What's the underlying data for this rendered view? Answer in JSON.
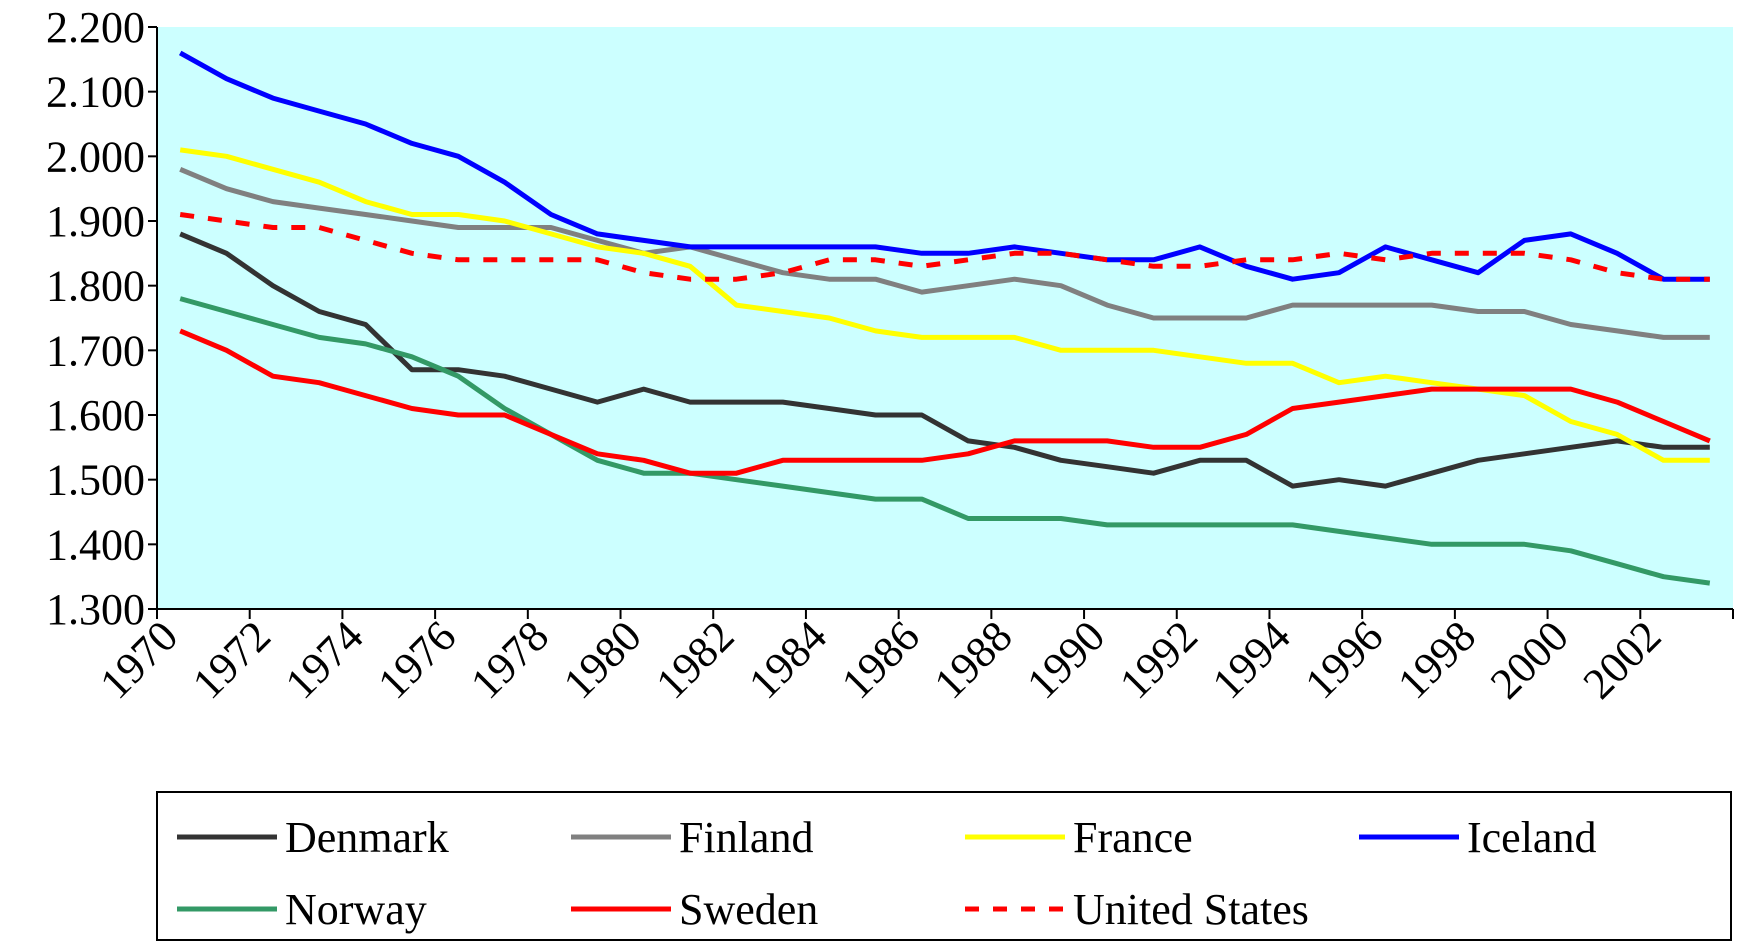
{
  "chart_data": {
    "type": "line",
    "categories": [
      "1970",
      null,
      "1972",
      null,
      "1974",
      null,
      "1976",
      null,
      "1978",
      null,
      "1980",
      null,
      "1982",
      null,
      "1984",
      null,
      "1986",
      null,
      "1988",
      null,
      "1990",
      null,
      "1992",
      null,
      "1994",
      null,
      "1996",
      null,
      "1998",
      null,
      "2000",
      null,
      "2002",
      null
    ],
    "ylim": [
      1.3,
      2.2
    ],
    "yticks": [
      {
        "value": 1.3,
        "label": "1.300"
      },
      {
        "value": 1.4,
        "label": "1.400"
      },
      {
        "value": 1.5,
        "label": "1.500"
      },
      {
        "value": 1.6,
        "label": "1.600"
      },
      {
        "value": 1.7,
        "label": "1.700"
      },
      {
        "value": 1.8,
        "label": "1.800"
      },
      {
        "value": 1.9,
        "label": "1.900"
      },
      {
        "value": 2.0,
        "label": "2.000"
      },
      {
        "value": 2.1,
        "label": "2.100"
      },
      {
        "value": 2.2,
        "label": "2.200"
      }
    ],
    "background": "#ccffff",
    "grid": false,
    "legend": "bottom",
    "series": [
      {
        "name": "Denmark",
        "color": "#333333",
        "values": [
          1.88,
          1.85,
          1.8,
          1.76,
          1.74,
          1.67,
          1.67,
          1.66,
          1.64,
          1.62,
          1.64,
          1.62,
          1.62,
          1.62,
          1.61,
          1.6,
          1.6,
          1.56,
          1.55,
          1.53,
          1.52,
          1.51,
          1.53,
          1.53,
          1.49,
          1.5,
          1.49,
          1.51,
          1.53,
          1.54,
          1.55,
          1.56,
          1.55,
          1.55
        ]
      },
      {
        "name": "Finland",
        "color": "#808080",
        "values": [
          1.98,
          1.95,
          1.93,
          1.92,
          1.91,
          1.9,
          1.89,
          1.89,
          1.89,
          1.87,
          1.85,
          1.86,
          1.84,
          1.82,
          1.81,
          1.81,
          1.79,
          1.8,
          1.81,
          1.8,
          1.77,
          1.75,
          1.75,
          1.75,
          1.77,
          1.77,
          1.77,
          1.77,
          1.76,
          1.76,
          1.74,
          1.73,
          1.72,
          1.72
        ]
      },
      {
        "name": "France",
        "color": "#ffff00",
        "values": [
          2.01,
          2.0,
          1.98,
          1.96,
          1.93,
          1.91,
          1.91,
          1.9,
          1.88,
          1.86,
          1.85,
          1.83,
          1.77,
          1.76,
          1.75,
          1.73,
          1.72,
          1.72,
          1.72,
          1.7,
          1.7,
          1.7,
          1.69,
          1.68,
          1.68,
          1.65,
          1.66,
          1.65,
          1.64,
          1.63,
          1.59,
          1.57,
          1.53,
          1.53
        ]
      },
      {
        "name": "Iceland",
        "color": "#0000ff",
        "values": [
          2.16,
          2.12,
          2.09,
          2.07,
          2.05,
          2.02,
          2.0,
          1.96,
          1.91,
          1.88,
          1.87,
          1.86,
          1.86,
          1.86,
          1.86,
          1.86,
          1.85,
          1.85,
          1.86,
          1.85,
          1.84,
          1.84,
          1.86,
          1.83,
          1.81,
          1.82,
          1.86,
          1.84,
          1.82,
          1.87,
          1.88,
          1.85,
          1.81,
          1.81
        ]
      },
      {
        "name": "Norway",
        "color": "#339966",
        "values": [
          1.78,
          1.76,
          1.74,
          1.72,
          1.71,
          1.69,
          1.66,
          1.61,
          1.57,
          1.53,
          1.51,
          1.51,
          1.5,
          1.49,
          1.48,
          1.47,
          1.47,
          1.44,
          1.44,
          1.44,
          1.43,
          1.43,
          1.43,
          1.43,
          1.43,
          1.42,
          1.41,
          1.4,
          1.4,
          1.4,
          1.39,
          1.37,
          1.35,
          1.34
        ]
      },
      {
        "name": "Sweden",
        "color": "#ff0000",
        "values": [
          1.73,
          1.7,
          1.66,
          1.65,
          1.63,
          1.61,
          1.6,
          1.6,
          1.57,
          1.54,
          1.53,
          1.51,
          1.51,
          1.53,
          1.53,
          1.53,
          1.53,
          1.54,
          1.56,
          1.56,
          1.56,
          1.55,
          1.55,
          1.57,
          1.61,
          1.62,
          1.63,
          1.64,
          1.64,
          1.64,
          1.64,
          1.62,
          1.59,
          1.56
        ]
      },
      {
        "name": "United States",
        "color": "#ff0000",
        "dashed": true,
        "values": [
          1.91,
          1.9,
          1.89,
          1.89,
          1.87,
          1.85,
          1.84,
          1.84,
          1.84,
          1.84,
          1.82,
          1.81,
          1.81,
          1.82,
          1.84,
          1.84,
          1.83,
          1.84,
          1.85,
          1.85,
          1.84,
          1.83,
          1.83,
          1.84,
          1.84,
          1.85,
          1.84,
          1.85,
          1.85,
          1.85,
          1.84,
          1.82,
          1.81,
          1.81
        ]
      }
    ]
  }
}
